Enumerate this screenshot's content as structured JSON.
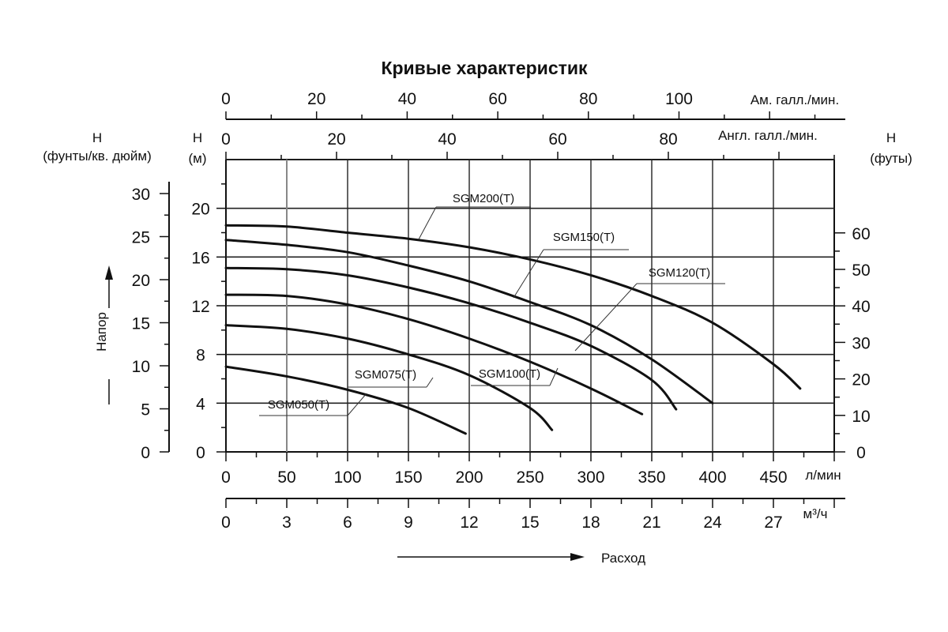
{
  "chart_data": {
    "type": "line",
    "title": "Кривые характеристик",
    "x_primary": {
      "unit": "л/мин",
      "range": [
        0,
        500
      ],
      "ticks": [
        "0",
        "50",
        "100",
        "150",
        "200",
        "250",
        "300",
        "350",
        "400",
        "450"
      ]
    },
    "x_m3h": {
      "unit": "м³/ч",
      "range": [
        0,
        30
      ],
      "ticks": [
        "0",
        "3",
        "6",
        "9",
        "12",
        "15",
        "18",
        "21",
        "24",
        "27"
      ]
    },
    "x_us_gpm": {
      "unit": "Ам. галл./мин.",
      "range": [
        0,
        132
      ],
      "ticks": [
        "0",
        "20",
        "40",
        "60",
        "80",
        "100"
      ]
    },
    "x_imp_gpm": {
      "unit": "Англ. галл./мин.",
      "range": [
        0,
        110
      ],
      "ticks": [
        "0",
        "20",
        "40",
        "60",
        "80"
      ]
    },
    "y_m": {
      "label_top": "Н",
      "unit": "(м)",
      "range": [
        0,
        24
      ],
      "ticks": [
        "0",
        "4",
        "8",
        "12",
        "16",
        "20"
      ]
    },
    "y_psi": {
      "label_top": "Н",
      "unit": "(фунты/кв. дюйм)",
      "ticks": [
        "0",
        "5",
        "10",
        "15",
        "20",
        "25",
        "30"
      ]
    },
    "y_ft": {
      "label_top": "Н",
      "unit": "(футы)",
      "ticks": [
        "0",
        "10",
        "20",
        "30",
        "40",
        "50",
        "60"
      ]
    },
    "y_axis_label": "Напор",
    "x_axis_label": "Расход",
    "grid": true,
    "series": [
      {
        "name": "SGM050(T)",
        "x": [
          0,
          50,
          100,
          150,
          197
        ],
        "y": [
          7,
          6.2,
          5.1,
          3.6,
          1.5
        ]
      },
      {
        "name": "SGM075(T)",
        "x": [
          0,
          50,
          100,
          150,
          200,
          250,
          268
        ],
        "y": [
          10.4,
          10.1,
          9.3,
          8.0,
          6.3,
          3.6,
          1.8
        ]
      },
      {
        "name": "SGM100(T)",
        "x": [
          0,
          50,
          100,
          150,
          200,
          250,
          300,
          342
        ],
        "y": [
          12.9,
          12.8,
          12.1,
          10.9,
          9.3,
          7.4,
          5.2,
          3.1
        ]
      },
      {
        "name": "SGM120(T)",
        "x": [
          0,
          50,
          100,
          150,
          200,
          250,
          300,
          350,
          370
        ],
        "y": [
          15.1,
          15.0,
          14.5,
          13.5,
          12.2,
          10.6,
          8.7,
          5.9,
          3.5
        ]
      },
      {
        "name": "SGM150(T)",
        "x": [
          0,
          50,
          100,
          150,
          200,
          250,
          300,
          350,
          400
        ],
        "y": [
          17.4,
          17.0,
          16.4,
          15.3,
          14.0,
          12.3,
          10.4,
          7.6,
          4.0
        ]
      },
      {
        "name": "SGM200(T)",
        "x": [
          0,
          50,
          100,
          150,
          200,
          250,
          300,
          350,
          400,
          450,
          472
        ],
        "y": [
          18.6,
          18.5,
          18.0,
          17.5,
          16.8,
          15.8,
          14.5,
          12.8,
          10.6,
          7.2,
          5.2
        ]
      }
    ],
    "series_labels": [
      {
        "name": "SGM200(T)",
        "text": "SGM200(T)"
      },
      {
        "name": "SGM150(T)",
        "text": "SGM150(T)"
      },
      {
        "name": "SGM120(T)",
        "text": "SGM120(T)"
      },
      {
        "name": "SGM100(T)",
        "text": "SGM100(T)"
      },
      {
        "name": "SGM075(T)",
        "text": "SGM075(T)"
      },
      {
        "name": "SGM050(T)",
        "text": "SGM050(T)"
      }
    ]
  }
}
